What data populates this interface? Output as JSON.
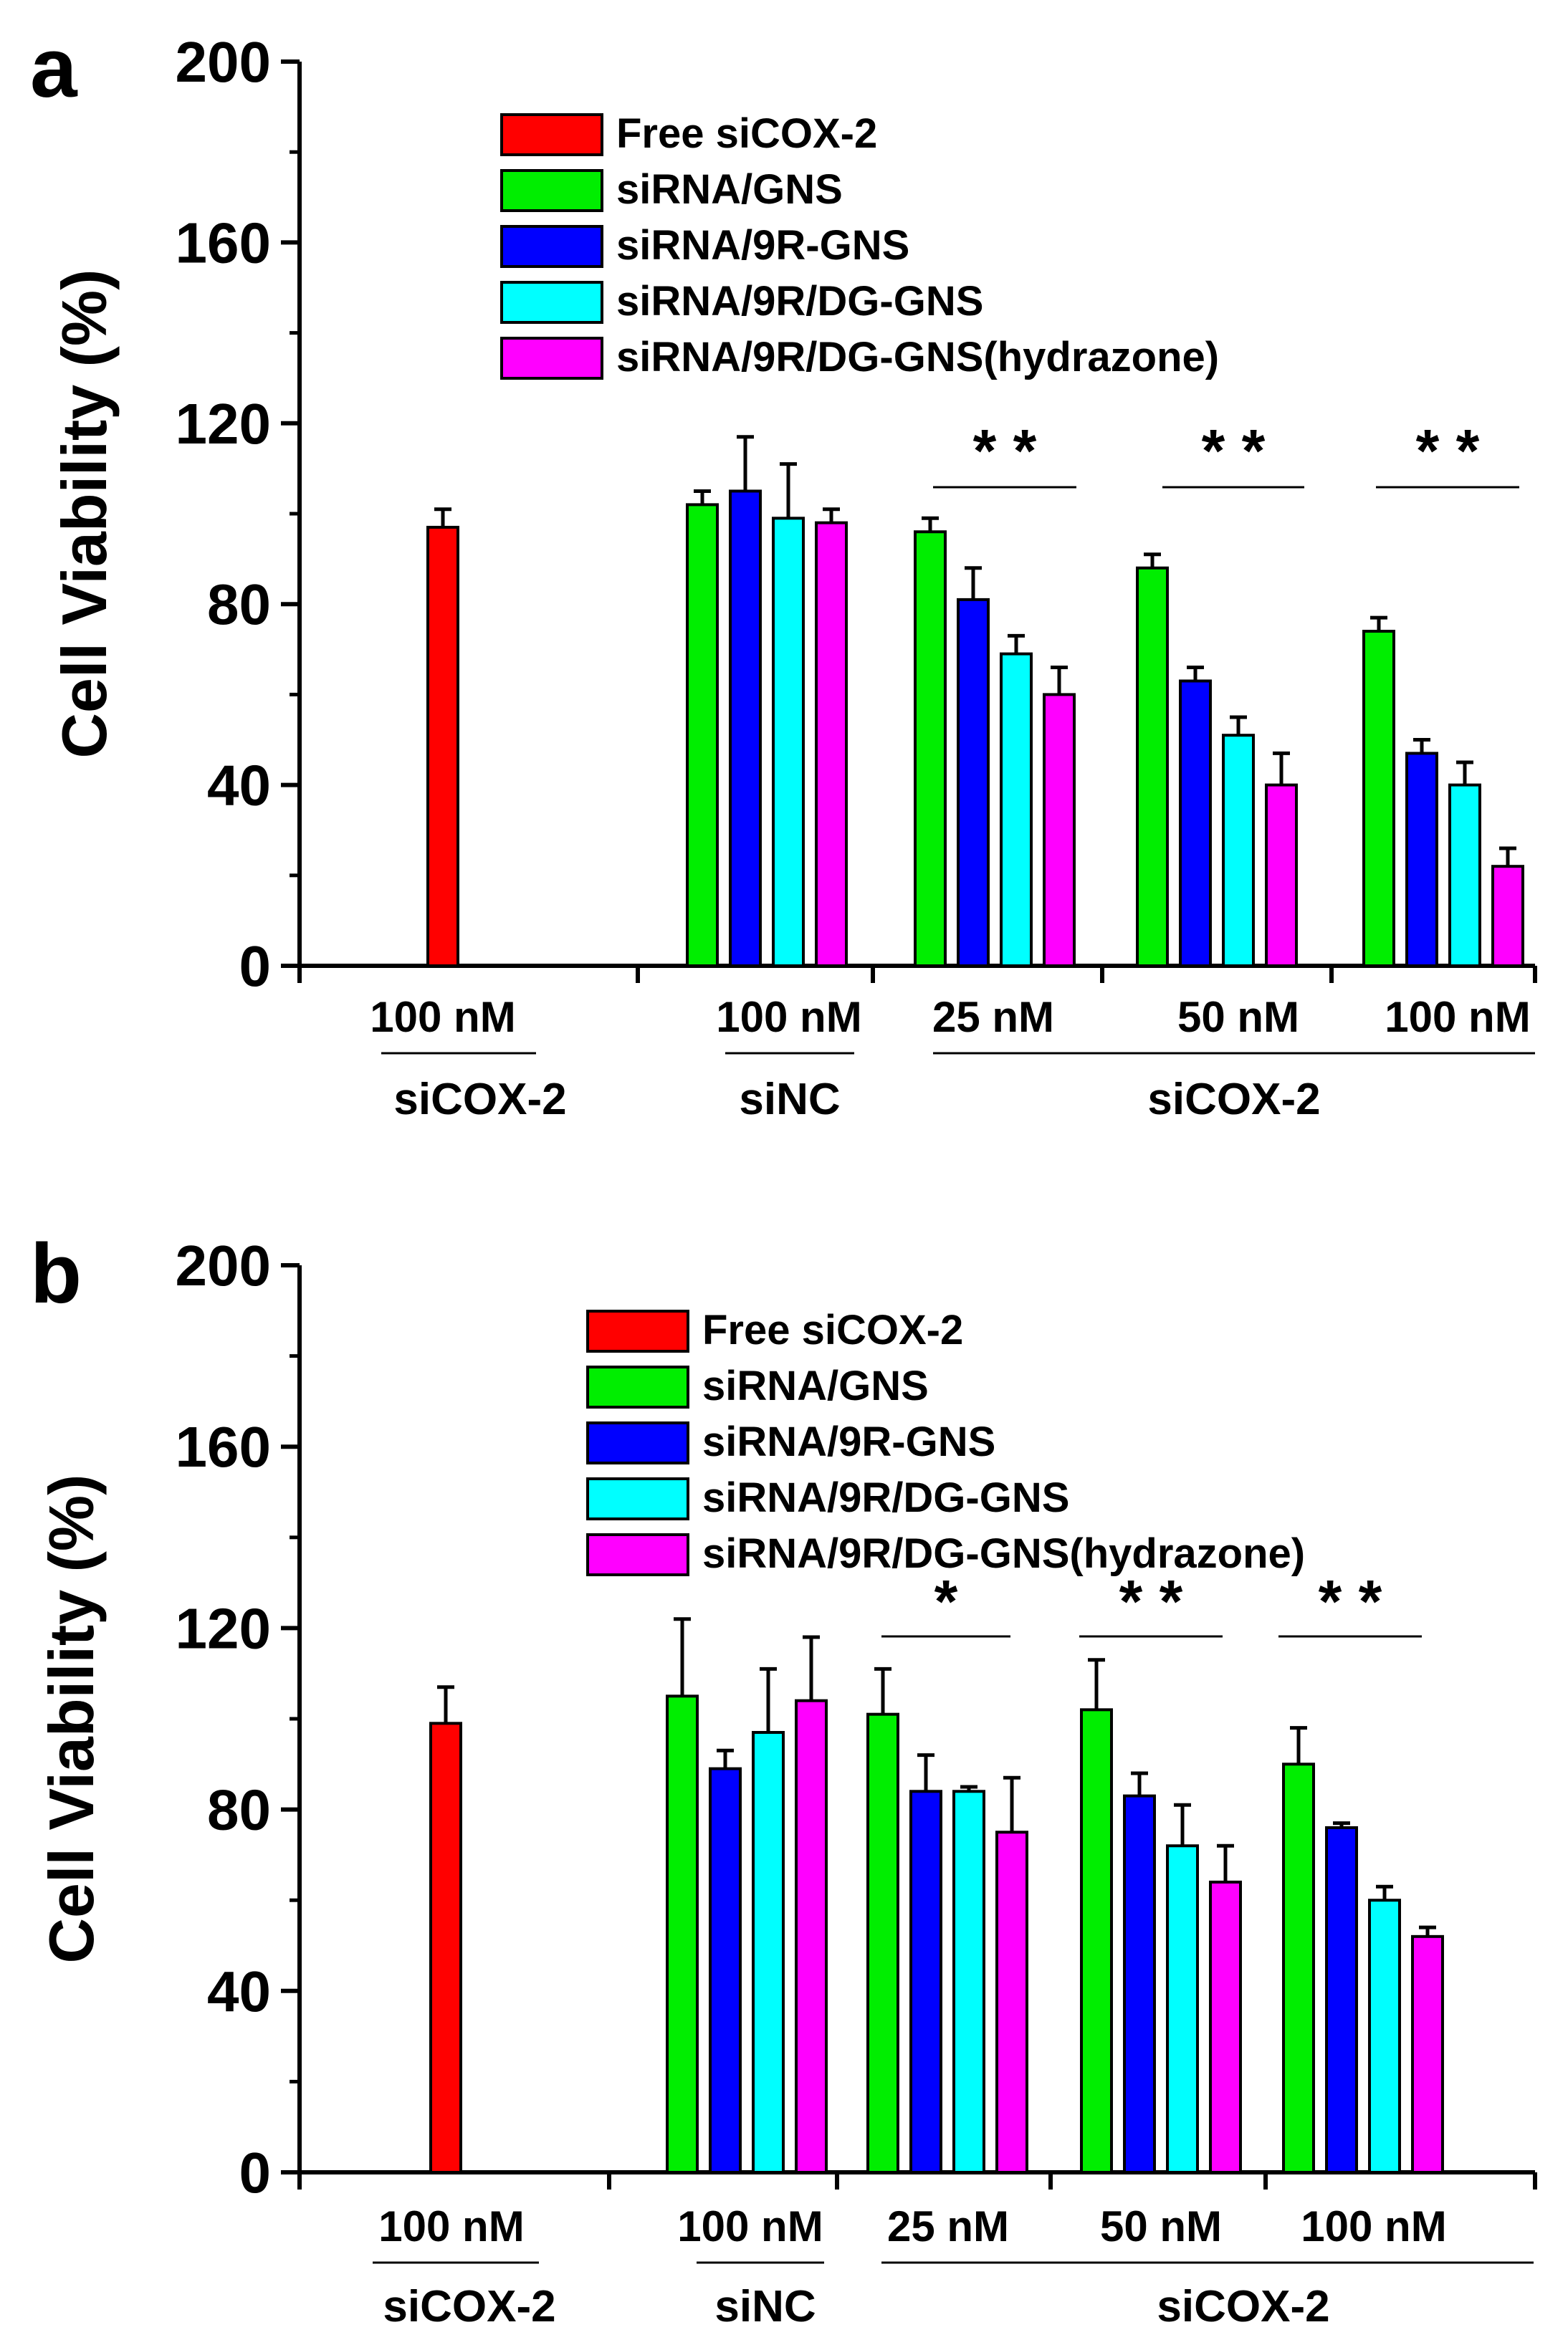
{
  "colors": {
    "Free siCOX-2": "#ff0000",
    "siRNA/GNS": "#00ee00",
    "siRNA/9R-GNS": "#0000ff",
    "siRNA/9R/DG-GNS": "#00ffff",
    "siRNA/9R/DG-GNS(hydrazone)": "#ff00ff"
  },
  "chart_data": [
    {
      "type": "bar",
      "panel_label": "a",
      "ylabel": "Cell Viability (%)",
      "ylim": [
        0,
        200
      ],
      "yticks": [
        "0",
        "40",
        "80",
        "120",
        "160",
        "200"
      ],
      "legend": [
        "Free siCOX-2",
        "siRNA/GNS",
        "siRNA/9R-GNS",
        "siRNA/9R/DG-GNS",
        "siRNA/9R/DG-GNS(hydrazone)"
      ],
      "groups": [
        {
          "label": "100 nM",
          "bars": [
            {
              "series": "Free siCOX-2",
              "value": 97,
              "error": 4
            }
          ]
        },
        {
          "label": "100 nM",
          "bars": [
            {
              "series": "siRNA/GNS",
              "value": 102,
              "error": 3
            },
            {
              "series": "siRNA/9R-GNS",
              "value": 105,
              "error": 12
            },
            {
              "series": "siRNA/9R/DG-GNS",
              "value": 99,
              "error": 12
            },
            {
              "series": "siRNA/9R/DG-GNS(hydrazone)",
              "value": 98,
              "error": 3
            }
          ]
        },
        {
          "label": "25 nM",
          "significance": "* *",
          "bars": [
            {
              "series": "siRNA/GNS",
              "value": 96,
              "error": 3
            },
            {
              "series": "siRNA/9R-GNS",
              "value": 81,
              "error": 7
            },
            {
              "series": "siRNA/9R/DG-GNS",
              "value": 69,
              "error": 4
            },
            {
              "series": "siRNA/9R/DG-GNS(hydrazone)",
              "value": 60,
              "error": 6
            }
          ]
        },
        {
          "label": "50 nM",
          "significance": "* *",
          "bars": [
            {
              "series": "siRNA/GNS",
              "value": 88,
              "error": 3
            },
            {
              "series": "siRNA/9R-GNS",
              "value": 63,
              "error": 3
            },
            {
              "series": "siRNA/9R/DG-GNS",
              "value": 51,
              "error": 4
            },
            {
              "series": "siRNA/9R/DG-GNS(hydrazone)",
              "value": 40,
              "error": 7
            }
          ]
        },
        {
          "label": "100 nM",
          "significance": "* *",
          "bars": [
            {
              "series": "siRNA/GNS",
              "value": 74,
              "error": 3
            },
            {
              "series": "siRNA/9R-GNS",
              "value": 47,
              "error": 3
            },
            {
              "series": "siRNA/9R/DG-GNS",
              "value": 40,
              "error": 5
            },
            {
              "series": "siRNA/9R/DG-GNS(hydrazone)",
              "value": 22,
              "error": 4
            }
          ]
        }
      ],
      "category_labels": [
        "siCOX-2",
        "siNC",
        "siCOX-2"
      ]
    },
    {
      "type": "bar",
      "panel_label": "b",
      "ylabel": "Cell Viability (%)",
      "ylim": [
        0,
        200
      ],
      "yticks": [
        "0",
        "40",
        "80",
        "120",
        "160",
        "200"
      ],
      "legend": [
        "Free siCOX-2",
        "siRNA/GNS",
        "siRNA/9R-GNS",
        "siRNA/9R/DG-GNS",
        "siRNA/9R/DG-GNS(hydrazone)"
      ],
      "groups": [
        {
          "label": "100 nM",
          "bars": [
            {
              "series": "Free siCOX-2",
              "value": 99,
              "error": 8
            }
          ]
        },
        {
          "label": "100 nM",
          "bars": [
            {
              "series": "siRNA/GNS",
              "value": 105,
              "error": 17
            },
            {
              "series": "siRNA/9R-GNS",
              "value": 89,
              "error": 4
            },
            {
              "series": "siRNA/9R/DG-GNS",
              "value": 97,
              "error": 14
            },
            {
              "series": "siRNA/9R/DG-GNS(hydrazone)",
              "value": 104,
              "error": 14
            }
          ]
        },
        {
          "label": "25 nM",
          "significance": "*",
          "bars": [
            {
              "series": "siRNA/GNS",
              "value": 101,
              "error": 10
            },
            {
              "series": "siRNA/9R-GNS",
              "value": 84,
              "error": 8
            },
            {
              "series": "siRNA/9R/DG-GNS",
              "value": 84,
              "error": 1
            },
            {
              "series": "siRNA/9R/DG-GNS(hydrazone)",
              "value": 75,
              "error": 12
            }
          ]
        },
        {
          "label": "50 nM",
          "significance": "* *",
          "bars": [
            {
              "series": "siRNA/GNS",
              "value": 102,
              "error": 11
            },
            {
              "series": "siRNA/9R-GNS",
              "value": 83,
              "error": 5
            },
            {
              "series": "siRNA/9R/DG-GNS",
              "value": 72,
              "error": 9
            },
            {
              "series": "siRNA/9R/DG-GNS(hydrazone)",
              "value": 64,
              "error": 8
            }
          ]
        },
        {
          "label": "100 nM",
          "significance": "* *",
          "bars": [
            {
              "series": "siRNA/GNS",
              "value": 90,
              "error": 8
            },
            {
              "series": "siRNA/9R-GNS",
              "value": 76,
              "error": 1
            },
            {
              "series": "siRNA/9R/DG-GNS",
              "value": 60,
              "error": 3
            },
            {
              "series": "siRNA/9R/DG-GNS(hydrazone)",
              "value": 52,
              "error": 2
            }
          ]
        }
      ],
      "category_labels": [
        "siCOX-2",
        "siNC",
        "siCOX-2"
      ]
    }
  ]
}
